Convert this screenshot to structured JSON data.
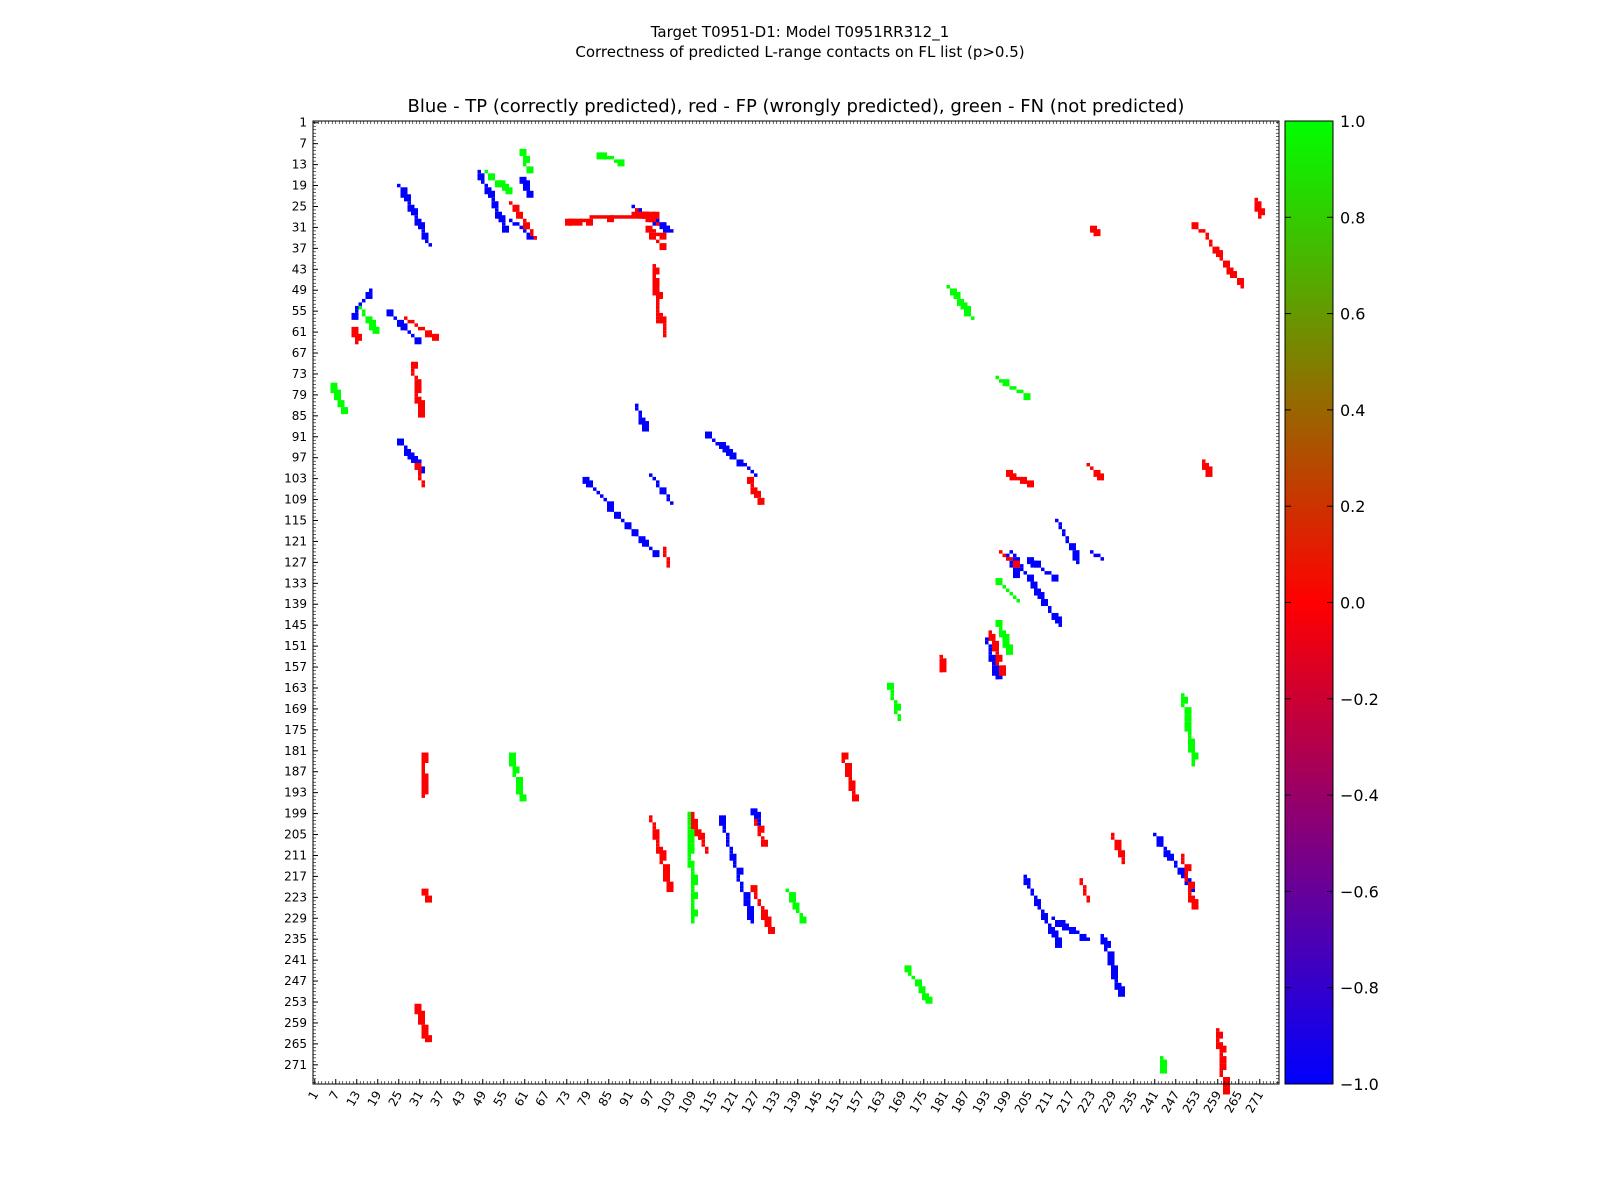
{
  "suptitle": {
    "line1": "Target T0951-D1: Model T0951RR312_1",
    "line2": "Correctness of predicted L-range contacts on FL list (p>0.5)"
  },
  "colors": {
    "tp": "#0000ff",
    "fp": "#ff0000",
    "fn": "#00ff00"
  },
  "chart_data": {
    "type": "heatmap",
    "title": "Blue - TP (correctly predicted), red - FP (wrongly predicted), green - FN (not predicted)",
    "xlabel": "",
    "ylabel": "",
    "xlim": [
      1,
      276
    ],
    "ylim": [
      1,
      276
    ],
    "y_inverted": true,
    "grid": false,
    "ticks": [
      1,
      7,
      13,
      19,
      25,
      31,
      37,
      43,
      49,
      55,
      61,
      67,
      73,
      79,
      85,
      91,
      97,
      103,
      109,
      115,
      121,
      127,
      133,
      139,
      145,
      151,
      157,
      163,
      169,
      175,
      181,
      187,
      193,
      199,
      205,
      211,
      217,
      223,
      229,
      235,
      241,
      247,
      253,
      259,
      265,
      271
    ],
    "legend": "none",
    "colorbar": {
      "ticks": [
        1.0,
        0.8,
        0.6,
        0.4,
        0.2,
        0.0,
        -0.2,
        -0.4,
        -0.6,
        -0.8,
        -1.0
      ],
      "tick_labels": [
        "1.0",
        "0.8",
        "0.6",
        "0.4",
        "0.2",
        "0.0",
        "−0.2",
        "−0.4",
        "−0.6",
        "−0.8",
        "−1.0"
      ],
      "colormap": "brg",
      "range": [
        -1.0,
        1.0
      ]
    },
    "value_meaning": {
      "-1": "TP (blue)",
      "0": "FP (red)",
      "1": "FN (green)"
    },
    "series": [
      {
        "class": "TP",
        "value": -1,
        "segments": [
          [
            17,
            49,
            12,
            56
          ],
          [
            22,
            55,
            30,
            63
          ],
          [
            48,
            15,
            55,
            31
          ],
          [
            57,
            29,
            64,
            34
          ],
          [
            92,
            25,
            103,
            32
          ],
          [
            93,
            82,
            95,
            88
          ],
          [
            97,
            102,
            103,
            110
          ],
          [
            25,
            92,
            31,
            100
          ],
          [
            78,
            103,
            92,
            118
          ],
          [
            92,
            118,
            98,
            124
          ],
          [
            113,
            90,
            127,
            102
          ],
          [
            117,
            200,
            126,
            230
          ],
          [
            204,
            217,
            213,
            236
          ],
          [
            226,
            234,
            231,
            250
          ],
          [
            241,
            205,
            252,
            221
          ],
          [
            200,
            124,
            214,
            145
          ],
          [
            213,
            115,
            219,
            127
          ],
          [
            199,
            125,
            201,
            130
          ],
          [
            193,
            149,
            196,
            160
          ],
          [
            126,
            198,
            129,
            203
          ],
          [
            205,
            126,
            212,
            131
          ],
          [
            60,
            17,
            62,
            21
          ],
          [
            25,
            19,
            34,
            36
          ],
          [
            212,
            229,
            222,
            235
          ],
          [
            223,
            124,
            226,
            126
          ]
        ]
      },
      {
        "class": "FP",
        "value": 0,
        "segments": [
          [
            12,
            60,
            13,
            64
          ],
          [
            27,
            57,
            35,
            62
          ],
          [
            30,
            99,
            32,
            105
          ],
          [
            29,
            70,
            31,
            84
          ],
          [
            97,
            33,
            100,
            36
          ],
          [
            98,
            42,
            99,
            58
          ],
          [
            100,
            56,
            101,
            62
          ],
          [
            101,
            123,
            102,
            128
          ],
          [
            125,
            103,
            128,
            110
          ],
          [
            57,
            24,
            64,
            34
          ],
          [
            73,
            29,
            98,
            27
          ],
          [
            96,
            31,
            100,
            33
          ],
          [
            199,
            101,
            205,
            104
          ],
          [
            223,
            31,
            224,
            33
          ],
          [
            252,
            30,
            256,
            33
          ],
          [
            256,
            34,
            266,
            48
          ],
          [
            270,
            23,
            271,
            28
          ],
          [
            127,
            201,
            129,
            207
          ],
          [
            126,
            220,
            131,
            232
          ],
          [
            32,
            182,
            32,
            194
          ],
          [
            32,
            221,
            33,
            223
          ],
          [
            97,
            200,
            102,
            220
          ],
          [
            108,
            199,
            113,
            210
          ],
          [
            220,
            218,
            222,
            224
          ],
          [
            249,
            211,
            252,
            226
          ],
          [
            93,
            26,
            99,
            30
          ],
          [
            222,
            99,
            225,
            102
          ],
          [
            255,
            98,
            256,
            102
          ],
          [
            30,
            254,
            33,
            264
          ],
          [
            180,
            154,
            180,
            158
          ],
          [
            194,
            147,
            197,
            158
          ],
          [
            152,
            182,
            155,
            195
          ],
          [
            229,
            205,
            232,
            213
          ],
          [
            197,
            124,
            202,
            128
          ],
          [
            259,
            261,
            261,
            279
          ]
        ]
      },
      {
        "class": "FN",
        "value": 1,
        "segments": [
          [
            14,
            54,
            18,
            60
          ],
          [
            50,
            15,
            56,
            20
          ],
          [
            60,
            9,
            62,
            15
          ],
          [
            82,
            10,
            88,
            12
          ],
          [
            6,
            76,
            9,
            84
          ],
          [
            57,
            182,
            60,
            195
          ],
          [
            108,
            199,
            109,
            230
          ],
          [
            165,
            162,
            168,
            172
          ],
          [
            170,
            243,
            176,
            252
          ],
          [
            182,
            48,
            189,
            57
          ],
          [
            196,
            74,
            204,
            79
          ],
          [
            196,
            132,
            202,
            138
          ],
          [
            196,
            144,
            199,
            152
          ],
          [
            249,
            165,
            252,
            185
          ],
          [
            136,
            221,
            140,
            229
          ],
          [
            243,
            269,
            243,
            272
          ]
        ]
      }
    ]
  }
}
